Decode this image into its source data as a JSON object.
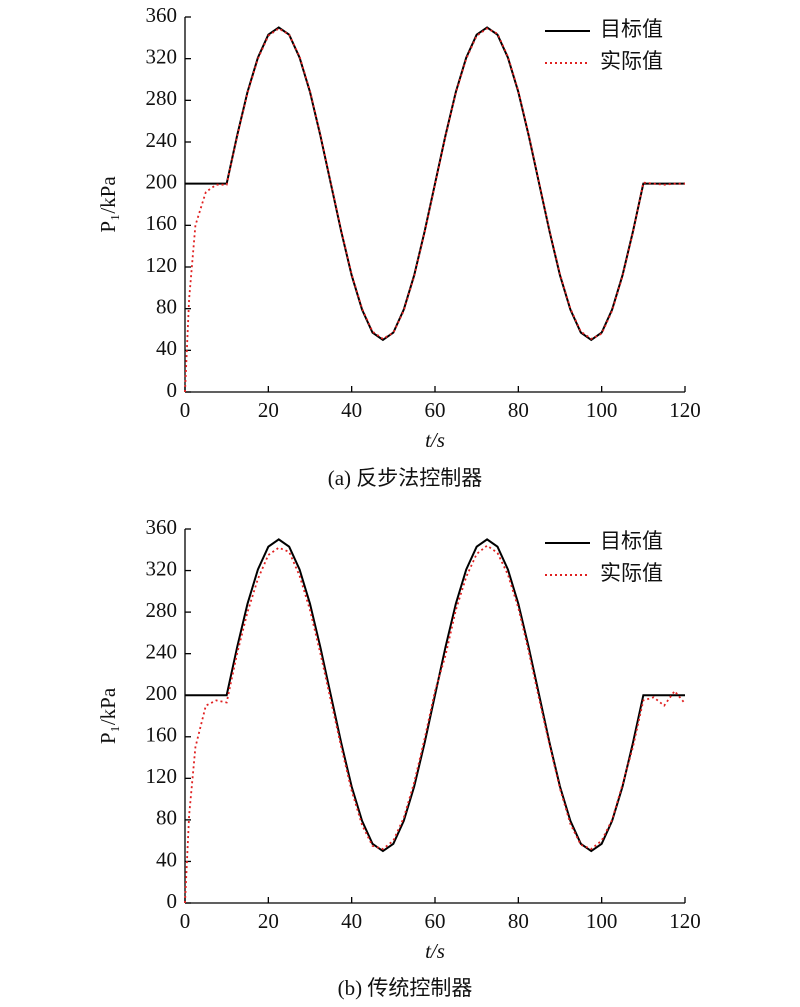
{
  "chart_data": [
    {
      "type": "line",
      "caption": "(a) 反步法控制器",
      "xlabel": "t/s",
      "ylabel": "P₁/kPa",
      "legend": "upper right",
      "grid": false,
      "xlim": [
        0,
        120
      ],
      "xticks": [
        0,
        20,
        40,
        60,
        80,
        100,
        120
      ],
      "ylim": [
        0,
        360
      ],
      "yticks": [
        0,
        40,
        80,
        120,
        160,
        200,
        240,
        280,
        320,
        360
      ],
      "x": [
        0,
        1,
        2.5,
        5,
        7.5,
        10,
        12.5,
        15,
        17.5,
        20,
        22.5,
        25,
        27.5,
        30,
        32.5,
        35,
        37.5,
        40,
        42.5,
        45,
        47.5,
        50,
        52.5,
        55,
        57.5,
        60,
        62.5,
        65,
        67.5,
        70,
        72.5,
        75,
        77.5,
        80,
        82.5,
        85,
        87.5,
        90,
        92.5,
        95,
        97.5,
        100,
        102.5,
        105,
        107.5,
        110,
        112.5,
        115,
        117.5,
        120
      ],
      "series": [
        {
          "name": "目标值",
          "color": "#000000",
          "style": "solid",
          "values": [
            200,
            200,
            200,
            200,
            200,
            200,
            246,
            288,
            321,
            343,
            350,
            343,
            321,
            288,
            246,
            200,
            154,
            112,
            79,
            57,
            50,
            57,
            79,
            112,
            154,
            200,
            246,
            288,
            321,
            343,
            350,
            343,
            321,
            288,
            246,
            200,
            154,
            112,
            79,
            57,
            50,
            57,
            79,
            112,
            154,
            200,
            200,
            200,
            200,
            200
          ]
        },
        {
          "name": "实际值",
          "color": "#e02020",
          "style": "dotted",
          "values": [
            0,
            90,
            160,
            192,
            199,
            199,
            245,
            287,
            320,
            342,
            349,
            343,
            322,
            289,
            247,
            201,
            155,
            113,
            80,
            58,
            51,
            57,
            78,
            111,
            153,
            199,
            245,
            287,
            320,
            342,
            349,
            344,
            322,
            289,
            247,
            201,
            155,
            113,
            80,
            58,
            51,
            56,
            78,
            111,
            153,
            201,
            200,
            199,
            200,
            200
          ]
        }
      ]
    },
    {
      "type": "line",
      "caption": "(b) 传统控制器",
      "xlabel": "t/s",
      "ylabel": "P₁/kPa",
      "legend": "upper right",
      "grid": false,
      "xlim": [
        0,
        120
      ],
      "xticks": [
        0,
        20,
        40,
        60,
        80,
        100,
        120
      ],
      "ylim": [
        0,
        360
      ],
      "yticks": [
        0,
        40,
        80,
        120,
        160,
        200,
        240,
        280,
        320,
        360
      ],
      "x": [
        0,
        1,
        2.5,
        5,
        7.5,
        10,
        12.5,
        15,
        17.5,
        20,
        22.5,
        25,
        27.5,
        30,
        32.5,
        35,
        37.5,
        40,
        42.5,
        45,
        47.5,
        50,
        52.5,
        55,
        57.5,
        60,
        62.5,
        65,
        67.5,
        70,
        72.5,
        75,
        77.5,
        80,
        82.5,
        85,
        87.5,
        90,
        92.5,
        95,
        97.5,
        100,
        102.5,
        105,
        107.5,
        110,
        112.5,
        115,
        117.5,
        120
      ],
      "series": [
        {
          "name": "目标值",
          "color": "#000000",
          "style": "solid",
          "values": [
            200,
            200,
            200,
            200,
            200,
            200,
            246,
            288,
            321,
            343,
            350,
            343,
            321,
            288,
            246,
            200,
            154,
            112,
            79,
            57,
            50,
            57,
            79,
            112,
            154,
            200,
            246,
            288,
            321,
            343,
            350,
            343,
            321,
            288,
            246,
            200,
            154,
            112,
            79,
            57,
            50,
            57,
            79,
            112,
            154,
            200,
            200,
            200,
            200,
            200
          ]
        },
        {
          "name": "实际值",
          "color": "#e02020",
          "style": "dotted",
          "values": [
            0,
            85,
            150,
            190,
            195,
            193,
            240,
            280,
            312,
            335,
            342,
            338,
            315,
            282,
            240,
            195,
            150,
            108,
            75,
            55,
            52,
            60,
            82,
            116,
            158,
            204,
            238,
            282,
            314,
            336,
            344,
            337,
            316,
            284,
            242,
            196,
            152,
            110,
            76,
            56,
            52,
            60,
            80,
            114,
            150,
            195,
            198,
            190,
            204,
            192
          ]
        }
      ]
    }
  ]
}
